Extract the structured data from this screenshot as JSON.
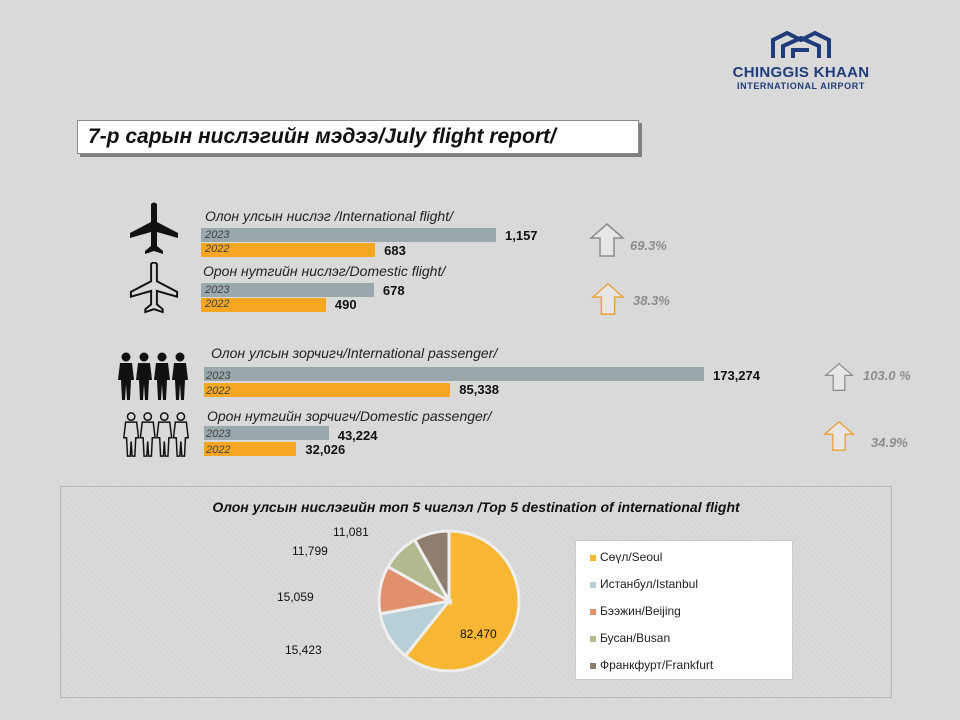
{
  "logo": {
    "line1": "CHINGGIS KHAAN",
    "line2": "INTERNATIONAL AIRPORT"
  },
  "title": "7-р сарын нислэгийн мэдээ/July flight report/",
  "colors": {
    "y2023": "#98a8ad",
    "y2022": "#f5a623",
    "arrow_gray": "#8c8c8c",
    "arrow_orange": "#e8a23a"
  },
  "chart_data": [
    {
      "type": "bar",
      "orientation": "horizontal",
      "categories": [
        "Олон улсын нислэг /International flight/",
        "Орон нутгийн нислэг/Domestic flight/"
      ],
      "series": [
        {
          "name": "2023",
          "values": [
            1157,
            678
          ],
          "labels": [
            "1,157",
            "678"
          ]
        },
        {
          "name": "2022",
          "values": [
            683,
            490
          ],
          "labels": [
            "683",
            "490"
          ]
        }
      ],
      "growth": [
        "69.3%",
        "38.3%"
      ]
    },
    {
      "type": "bar",
      "orientation": "horizontal",
      "categories": [
        "Олон улсын зорчигч/International passenger/",
        "Орон нутгийн зорчигч/Domestic passenger/"
      ],
      "series": [
        {
          "name": "2023",
          "values": [
            173274,
            43224
          ],
          "labels": [
            "173,274",
            "43,224"
          ]
        },
        {
          "name": "2022",
          "values": [
            85338,
            32026
          ],
          "labels": [
            "85,338",
            "32,026"
          ]
        }
      ],
      "growth": [
        "103.0 %",
        "34.9%"
      ]
    },
    {
      "type": "pie",
      "title": "Олон улсын нислэгийн  топ  5  чиглэл  /Top  5  destination   of  international   flight",
      "categories": [
        "Сөүл/Seoul",
        "Истанбул/Istanbul",
        "Бээжин/Beijing",
        "Бусан/Busan",
        "Франкфурт/Frankfurt"
      ],
      "values": [
        82470,
        15423,
        15059,
        11799,
        11081
      ],
      "labels": [
        "82,470",
        "15,423",
        "15,059",
        "11,799",
        "11,081"
      ],
      "colors": [
        "#f7b733",
        "#b9cfd8",
        "#e2906b",
        "#b3b98f",
        "#8f7d6e"
      ],
      "legend": "right"
    }
  ]
}
